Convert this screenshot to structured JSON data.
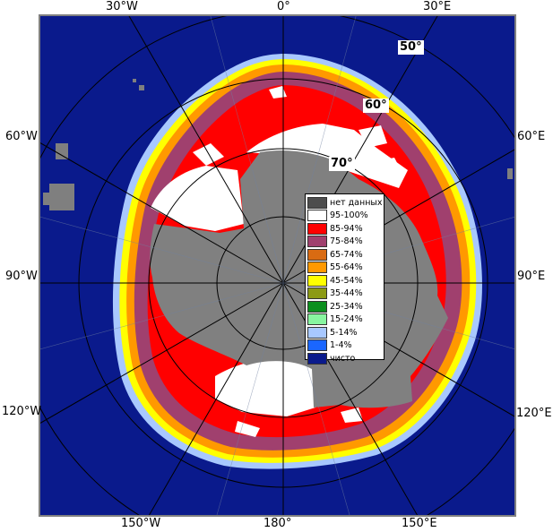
{
  "map": {
    "longitude_labels": {
      "top_30w": "30°W",
      "top_0": "0°",
      "top_30e": "30°E",
      "left_60w": "60°W",
      "left_90w": "90°W",
      "left_120w": "120°W",
      "right_60e": "60°E",
      "right_90e": "90°E",
      "right_120e": "120°E",
      "bottom_150w": "150°W",
      "bottom_180": "180°",
      "bottom_150e": "150°E"
    },
    "latitude_labels": {
      "lat_50": "50°",
      "lat_60": "60°",
      "lat_70": "70°"
    },
    "colors": {
      "open_water": "#0a1a8c",
      "no_data": "#7f7f7f",
      "land_gray": "#808080",
      "grid_lines": "#000000",
      "frame": "#808080"
    }
  },
  "legend": {
    "items": [
      {
        "label": "нет данных",
        "color": "#4d4d4d"
      },
      {
        "label": "95-100%",
        "color": "#ffffff"
      },
      {
        "label": "85-94%",
        "color": "#ff0000"
      },
      {
        "label": "75-84%",
        "color": "#a0406e"
      },
      {
        "label": "65-74%",
        "color": "#d96b12"
      },
      {
        "label": "55-64%",
        "color": "#ff9900"
      },
      {
        "label": "45-54%",
        "color": "#ffff00"
      },
      {
        "label": "35-44%",
        "color": "#8c9a14"
      },
      {
        "label": "25-34%",
        "color": "#0b8f1e"
      },
      {
        "label": "15-24%",
        "color": "#88f5a0"
      },
      {
        "label": "5-14%",
        "color": "#a8c8ff"
      },
      {
        "label": "1-4%",
        "color": "#1a66ff"
      },
      {
        "label": "чисто",
        "color": "#0a1a8c"
      }
    ]
  }
}
